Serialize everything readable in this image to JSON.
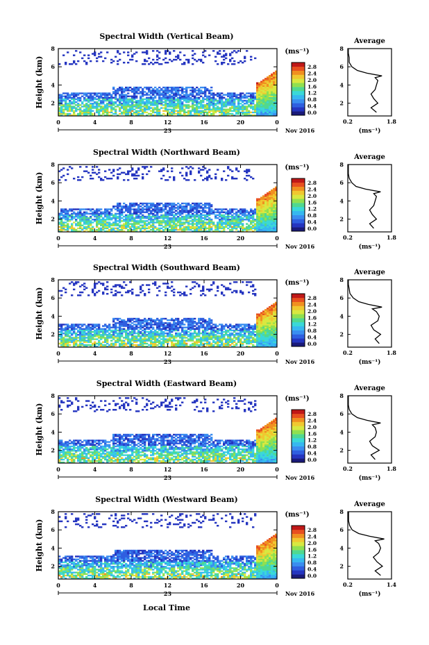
{
  "figure": {
    "xlabel": "Local Time",
    "ylabel": "Height (km)",
    "date_label": "23",
    "month_label": "Nov 2016",
    "colorbar_unit": "(ms⁻¹)",
    "colorbar_ticks": [
      "2.8",
      "2.4",
      "2.0",
      "1.6",
      "1.2",
      "0.8",
      "0.4",
      "0.0"
    ],
    "avg_title": "Average",
    "avg_xlabel": "(ms⁻¹)"
  },
  "chart_data": [
    {
      "type": "heatmap",
      "title": "Spectral Width (Vertical Beam)",
      "xlim": [
        0,
        24
      ],
      "ylim": [
        0.6,
        8
      ],
      "x_ticks": [
        "0",
        "4",
        "8",
        "12",
        "16",
        "20",
        "0"
      ],
      "y_ticks": [
        "2",
        "4",
        "6",
        "8"
      ],
      "clim": [
        0,
        2.8
      ],
      "avg_profile": {
        "xlim": [
          0.2,
          1.8
        ],
        "x_ticks": [
          "0.2",
          "1.8"
        ],
        "y_ticks": [
          "2",
          "4",
          "6",
          "8"
        ],
        "height": [
          1.0,
          1.5,
          2.0,
          2.5,
          3.0,
          3.5,
          4.0,
          4.5,
          4.8,
          5.0,
          5.3,
          5.6,
          6.0,
          6.5,
          7.0,
          7.5,
          8.0
        ],
        "value": [
          1.25,
          1.05,
          1.3,
          1.15,
          1.05,
          1.2,
          1.25,
          1.3,
          1.2,
          1.45,
          0.9,
          0.55,
          0.35,
          0.25,
          0.25,
          0.22,
          0.22
        ]
      }
    },
    {
      "type": "heatmap",
      "title": "Spectral Width (Northward Beam)",
      "xlim": [
        0,
        24
      ],
      "ylim": [
        0.6,
        8
      ],
      "x_ticks": [
        "0",
        "4",
        "8",
        "12",
        "16",
        "20",
        "0"
      ],
      "y_ticks": [
        "2",
        "4",
        "6",
        "8"
      ],
      "clim": [
        0,
        2.8
      ],
      "avg_profile": {
        "xlim": [
          0.2,
          1.8
        ],
        "x_ticks": [
          "0.2",
          "1.8"
        ],
        "y_ticks": [
          "2",
          "4",
          "6",
          "8"
        ],
        "height": [
          1.0,
          1.5,
          2.0,
          2.5,
          3.0,
          3.5,
          4.0,
          4.5,
          4.8,
          5.0,
          5.3,
          5.6,
          6.0,
          6.5,
          7.0,
          7.5,
          8.0
        ],
        "value": [
          1.15,
          1.0,
          1.25,
          1.1,
          1.0,
          1.15,
          1.2,
          1.25,
          1.15,
          1.4,
          0.85,
          0.5,
          0.35,
          0.25,
          0.22,
          0.22,
          0.22
        ]
      }
    },
    {
      "type": "heatmap",
      "title": "Spectral Width (Southward Beam)",
      "xlim": [
        0,
        24
      ],
      "ylim": [
        0.6,
        8
      ],
      "x_ticks": [
        "0",
        "4",
        "8",
        "12",
        "16",
        "20",
        "0"
      ],
      "y_ticks": [
        "2",
        "4",
        "6",
        "8"
      ],
      "clim": [
        0,
        2.8
      ],
      "avg_profile": {
        "xlim": [
          0.2,
          1.8
        ],
        "x_ticks": [
          "0.2",
          "1.8"
        ],
        "y_ticks": [
          "2",
          "4",
          "6",
          "8"
        ],
        "height": [
          1.0,
          1.5,
          2.0,
          2.5,
          3.0,
          3.5,
          4.0,
          4.5,
          4.8,
          5.0,
          5.3,
          5.6,
          6.0,
          6.5,
          7.0,
          7.5,
          8.0
        ],
        "value": [
          1.35,
          1.2,
          1.4,
          1.15,
          1.05,
          1.3,
          1.35,
          1.25,
          1.1,
          1.45,
          0.95,
          0.6,
          0.4,
          0.28,
          0.25,
          0.22,
          0.22
        ]
      }
    },
    {
      "type": "heatmap",
      "title": "Spectral Width (Eastward Beam)",
      "xlim": [
        0,
        24
      ],
      "ylim": [
        0.6,
        8
      ],
      "x_ticks": [
        "0",
        "4",
        "8",
        "12",
        "16",
        "20",
        "0"
      ],
      "y_ticks": [
        "2",
        "4",
        "6",
        "8"
      ],
      "clim": [
        0,
        2.8
      ],
      "avg_profile": {
        "xlim": [
          0.2,
          1.8
        ],
        "x_ticks": [
          "0.2",
          "1.8"
        ],
        "y_ticks": [
          "2",
          "4",
          "6",
          "8"
        ],
        "height": [
          1.0,
          1.5,
          2.0,
          2.5,
          3.0,
          3.5,
          4.0,
          4.5,
          4.8,
          5.0,
          5.3,
          5.6,
          6.0,
          6.5,
          7.0,
          7.5,
          8.0
        ],
        "value": [
          1.2,
          1.05,
          1.35,
          1.1,
          1.0,
          1.2,
          1.25,
          1.2,
          1.1,
          1.4,
          0.9,
          0.55,
          0.35,
          0.25,
          0.22,
          0.22,
          0.22
        ]
      }
    },
    {
      "type": "heatmap",
      "title": "Spectral Width (Westward Beam)",
      "xlim": [
        0,
        24
      ],
      "ylim": [
        0.6,
        8
      ],
      "x_ticks": [
        "0",
        "4",
        "8",
        "12",
        "16",
        "20",
        "0"
      ],
      "y_ticks": [
        "2",
        "4",
        "6",
        "8"
      ],
      "clim": [
        0,
        2.8
      ],
      "avg_profile": {
        "xlim": [
          0.2,
          1.4
        ],
        "x_ticks": [
          "0.2",
          "1.4"
        ],
        "y_ticks": [
          "2",
          "4",
          "6",
          "8"
        ],
        "height": [
          1.0,
          1.5,
          2.0,
          2.5,
          3.0,
          3.5,
          4.0,
          4.5,
          4.8,
          5.0,
          5.3,
          5.6,
          6.0,
          6.5,
          7.0,
          7.5,
          8.0
        ],
        "value": [
          1.1,
          0.95,
          1.15,
          1.0,
          0.9,
          1.05,
          1.1,
          1.05,
          0.95,
          1.2,
          0.8,
          0.5,
          0.32,
          0.25,
          0.22,
          0.22,
          0.22
        ]
      }
    }
  ]
}
